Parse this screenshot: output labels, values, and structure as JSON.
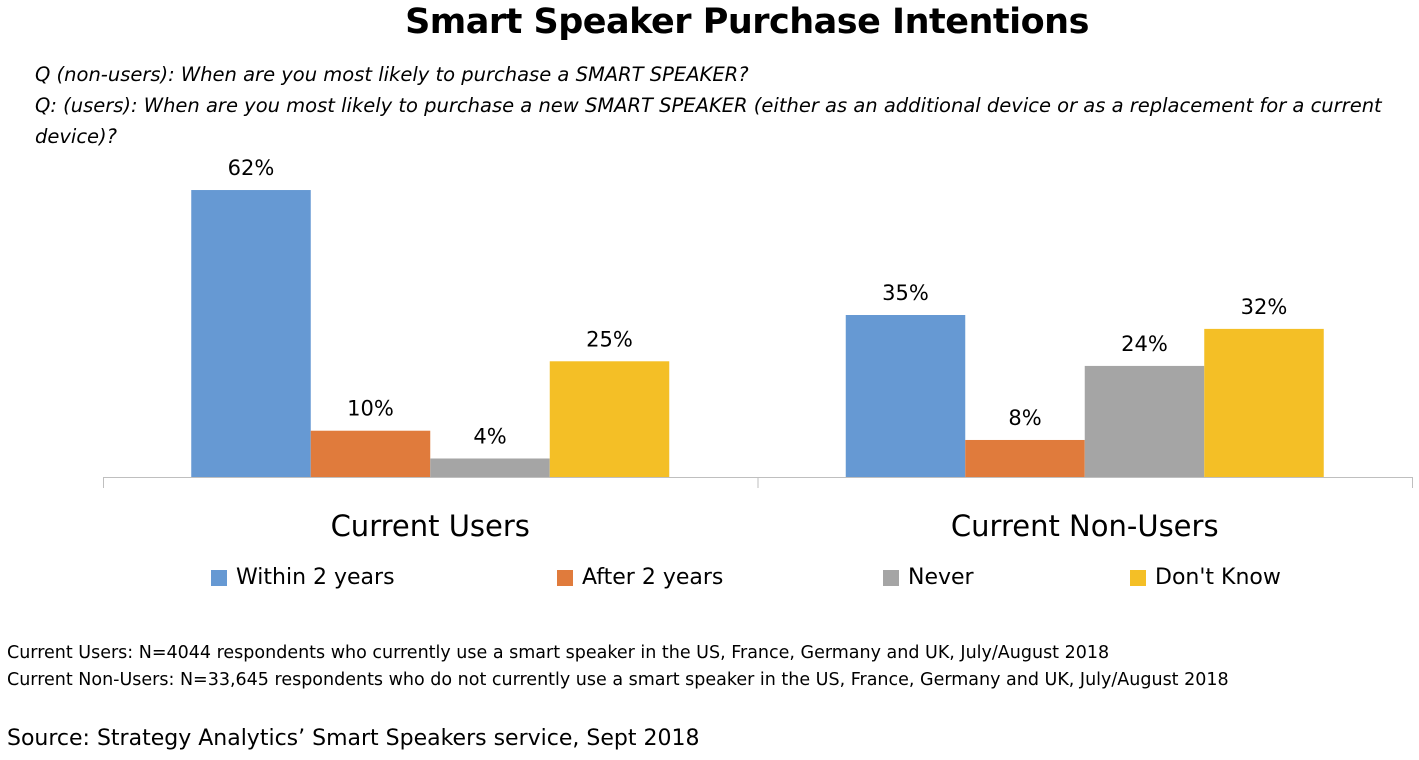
{
  "title": "Smart Speaker Purchase Intentions",
  "questions": [
    "Q (non-users): When are you most likely to purchase a SMART SPEAKER?",
    "Q: (users): When are you most likely to purchase a new SMART SPEAKER (either as an additional device or as a replacement for a current",
    "device)?"
  ],
  "chart_data": {
    "type": "bar",
    "title": "Smart Speaker Purchase Intentions",
    "categories": [
      "Current Users",
      "Current Non-Users"
    ],
    "series": [
      {
        "name": "Within 2 years",
        "color": "#6699D3",
        "values": [
          62,
          35
        ],
        "labels": [
          "62%",
          "35%"
        ]
      },
      {
        "name": "After 2 years",
        "color": "#E07B3C",
        "values": [
          10,
          8
        ],
        "labels": [
          "10%",
          "8%"
        ]
      },
      {
        "name": "Never",
        "color": "#A5A5A5",
        "values": [
          4,
          24
        ],
        "labels": [
          "4%",
          "24%"
        ]
      },
      {
        "name": "Don't Know",
        "color": "#F4BF26",
        "values": [
          25,
          32
        ],
        "labels": [
          "25%",
          "32%"
        ]
      }
    ],
    "unit": "%",
    "ylim": [
      0,
      70
    ],
    "grid": false,
    "legend": "bottom"
  },
  "notes": [
    "Current Users: N=4044 respondents who currently use a smart speaker in the US, France, Germany and UK, July/August 2018",
    "Current Non-Users: N=33,645 respondents who do not currently use a smart speaker in the US, France, Germany and UK, July/August 2018"
  ],
  "source": "Source: Strategy Analytics’ Smart Speakers service, Sept 2018"
}
